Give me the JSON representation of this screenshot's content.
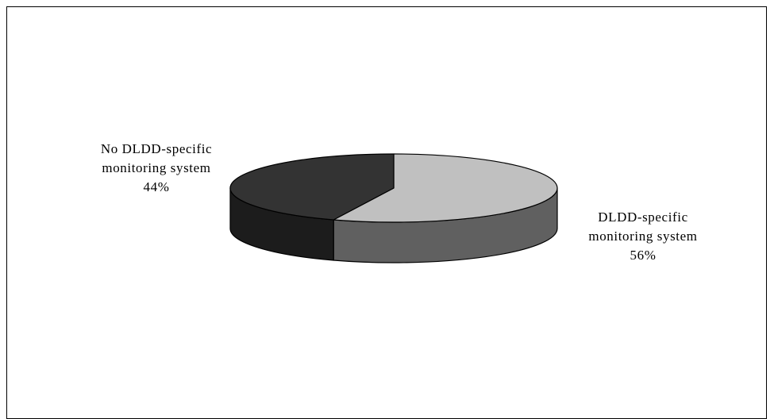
{
  "chart_data": {
    "type": "pie",
    "style": "3d",
    "slices": [
      {
        "name_lines": [
          "DLDD-specific",
          "monitoring system"
        ],
        "value": 56,
        "label": "56%",
        "top_color": "#c0c0c0",
        "side_color": "#606060"
      },
      {
        "name_lines": [
          "No DLDD-specific",
          "monitoring system"
        ],
        "value": 44,
        "label": "44%",
        "top_color": "#333333",
        "side_color": "#1c1c1c"
      }
    ],
    "title": "",
    "legend": "none"
  }
}
